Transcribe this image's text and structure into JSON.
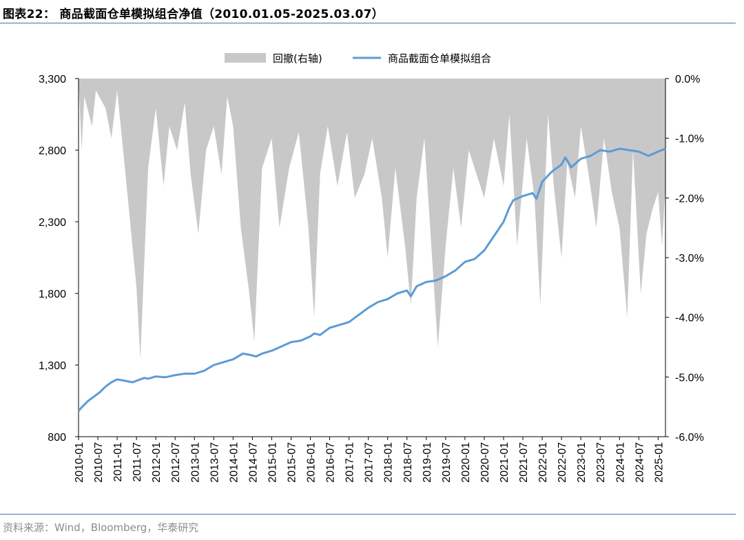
{
  "figure": {
    "title": "图表22： 商品截面仓单模拟组合净值（2010.01.05-2025.03.07）",
    "source": "资料来源：Wind，Bloomberg，华泰研究"
  },
  "chart_data": {
    "type": "line",
    "legend": {
      "position": "top-center",
      "entries": [
        {
          "name": "回撤(右轴)",
          "kind": "area",
          "color": "#c8c8c8"
        },
        {
          "name": "商品截面仓单模拟组合",
          "kind": "line",
          "color": "#5b9bd5"
        }
      ]
    },
    "x_tick_labels": [
      "2010-01",
      "2010-07",
      "2011-01",
      "2011-07",
      "2012-01",
      "2012-07",
      "2013-01",
      "2013-07",
      "2014-01",
      "2014-07",
      "2015-01",
      "2015-07",
      "2016-01",
      "2016-07",
      "2017-01",
      "2017-07",
      "2018-01",
      "2018-07",
      "2019-01",
      "2019-07",
      "2020-01",
      "2020-07",
      "2021-01",
      "2021-07",
      "2022-01",
      "2022-07",
      "2023-01",
      "2023-07",
      "2024-01",
      "2024-07",
      "2025-01"
    ],
    "x_range": [
      2010.0,
      2025.19
    ],
    "left_axis": {
      "ylim": [
        800,
        3300
      ],
      "ticks": [
        800,
        1300,
        1800,
        2300,
        2800,
        3300
      ],
      "tick_labels": [
        "800",
        "1,300",
        "1,800",
        "2,300",
        "2,800",
        "3,300"
      ]
    },
    "right_axis": {
      "ylim": [
        -6.0,
        0.0
      ],
      "unit": "%",
      "ticks": [
        -6.0,
        -5.0,
        -4.0,
        -3.0,
        -2.0,
        -1.0,
        0.0
      ],
      "tick_labels": [
        "-6.0%",
        "-5.0%",
        "-4.0%",
        "-3.0%",
        "-2.0%",
        "-1.0%",
        "0.0%"
      ]
    },
    "series": [
      {
        "name": "商品截面仓单模拟组合",
        "axis": "left",
        "x": [
          2010.0,
          2010.1,
          2010.25,
          2010.4,
          2010.55,
          2010.7,
          2010.85,
          2011.0,
          2011.2,
          2011.4,
          2011.6,
          2011.7,
          2011.8,
          2012.0,
          2012.25,
          2012.5,
          2012.75,
          2013.0,
          2013.25,
          2013.5,
          2013.75,
          2014.0,
          2014.25,
          2014.45,
          2014.6,
          2014.75,
          2015.0,
          2015.25,
          2015.5,
          2015.75,
          2016.0,
          2016.1,
          2016.25,
          2016.5,
          2016.75,
          2017.0,
          2017.25,
          2017.5,
          2017.75,
          2018.0,
          2018.25,
          2018.5,
          2018.6,
          2018.75,
          2019.0,
          2019.25,
          2019.5,
          2019.75,
          2020.0,
          2020.25,
          2020.5,
          2020.75,
          2021.0,
          2021.15,
          2021.25,
          2021.5,
          2021.75,
          2021.85,
          2022.0,
          2022.25,
          2022.5,
          2022.6,
          2022.75,
          2023.0,
          2023.25,
          2023.5,
          2023.75,
          2024.0,
          2024.25,
          2024.5,
          2024.75,
          2025.0,
          2025.19
        ],
        "y": [
          980,
          1010,
          1050,
          1080,
          1110,
          1150,
          1180,
          1200,
          1190,
          1180,
          1200,
          1210,
          1205,
          1220,
          1215,
          1230,
          1240,
          1240,
          1260,
          1300,
          1320,
          1340,
          1380,
          1370,
          1360,
          1380,
          1400,
          1430,
          1460,
          1470,
          1500,
          1520,
          1510,
          1560,
          1580,
          1600,
          1650,
          1700,
          1740,
          1760,
          1800,
          1820,
          1780,
          1850,
          1880,
          1890,
          1920,
          1960,
          2020,
          2040,
          2100,
          2200,
          2300,
          2400,
          2450,
          2480,
          2500,
          2460,
          2580,
          2650,
          2700,
          2750,
          2680,
          2740,
          2760,
          2800,
          2790,
          2810,
          2800,
          2790,
          2760,
          2790,
          2810
        ]
      },
      {
        "name": "回撤(右轴)",
        "axis": "right",
        "kind": "area",
        "x": [
          2010.0,
          2010.08,
          2010.15,
          2010.35,
          2010.45,
          2010.7,
          2010.85,
          2011.0,
          2011.2,
          2011.35,
          2011.5,
          2011.6,
          2011.8,
          2012.0,
          2012.2,
          2012.35,
          2012.55,
          2012.75,
          2012.9,
          2013.1,
          2013.3,
          2013.5,
          2013.7,
          2013.85,
          2014.0,
          2014.2,
          2014.4,
          2014.55,
          2014.75,
          2015.0,
          2015.2,
          2015.45,
          2015.7,
          2015.95,
          2016.1,
          2016.25,
          2016.45,
          2016.7,
          2016.95,
          2017.15,
          2017.4,
          2017.6,
          2017.85,
          2018.0,
          2018.2,
          2018.45,
          2018.6,
          2018.75,
          2018.95,
          2019.1,
          2019.3,
          2019.5,
          2019.7,
          2019.9,
          2020.1,
          2020.3,
          2020.5,
          2020.75,
          2021.0,
          2021.15,
          2021.35,
          2021.6,
          2021.8,
          2021.95,
          2022.15,
          2022.3,
          2022.5,
          2022.65,
          2022.85,
          2023.0,
          2023.2,
          2023.4,
          2023.6,
          2023.8,
          2024.0,
          2024.2,
          2024.35,
          2024.55,
          2024.7,
          2024.85,
          2025.0,
          2025.1,
          2025.19
        ],
        "y": [
          0.0,
          -1.2,
          -0.3,
          -0.8,
          -0.2,
          -0.5,
          -1.0,
          -0.2,
          -1.5,
          -2.5,
          -3.5,
          -4.7,
          -1.5,
          -0.5,
          -1.8,
          -0.8,
          -1.2,
          -0.4,
          -1.6,
          -2.6,
          -1.2,
          -0.8,
          -1.6,
          -0.3,
          -0.8,
          -2.5,
          -3.5,
          -4.4,
          -1.5,
          -1.0,
          -2.5,
          -1.5,
          -0.9,
          -2.5,
          -4.0,
          -1.6,
          -0.8,
          -1.8,
          -0.9,
          -2.0,
          -1.6,
          -1.0,
          -2.0,
          -3.0,
          -1.5,
          -2.8,
          -3.8,
          -2.0,
          -1.0,
          -2.5,
          -4.5,
          -2.8,
          -1.5,
          -2.5,
          -1.2,
          -1.6,
          -2.0,
          -1.0,
          -1.8,
          -0.6,
          -2.8,
          -1.0,
          -2.0,
          -3.8,
          -0.6,
          -1.8,
          -3.0,
          -1.4,
          -2.0,
          -0.8,
          -1.6,
          -2.5,
          -1.0,
          -1.9,
          -2.5,
          -4.0,
          -1.2,
          -3.6,
          -2.6,
          -2.2,
          -1.9,
          -2.8,
          -1.8
        ]
      }
    ]
  }
}
